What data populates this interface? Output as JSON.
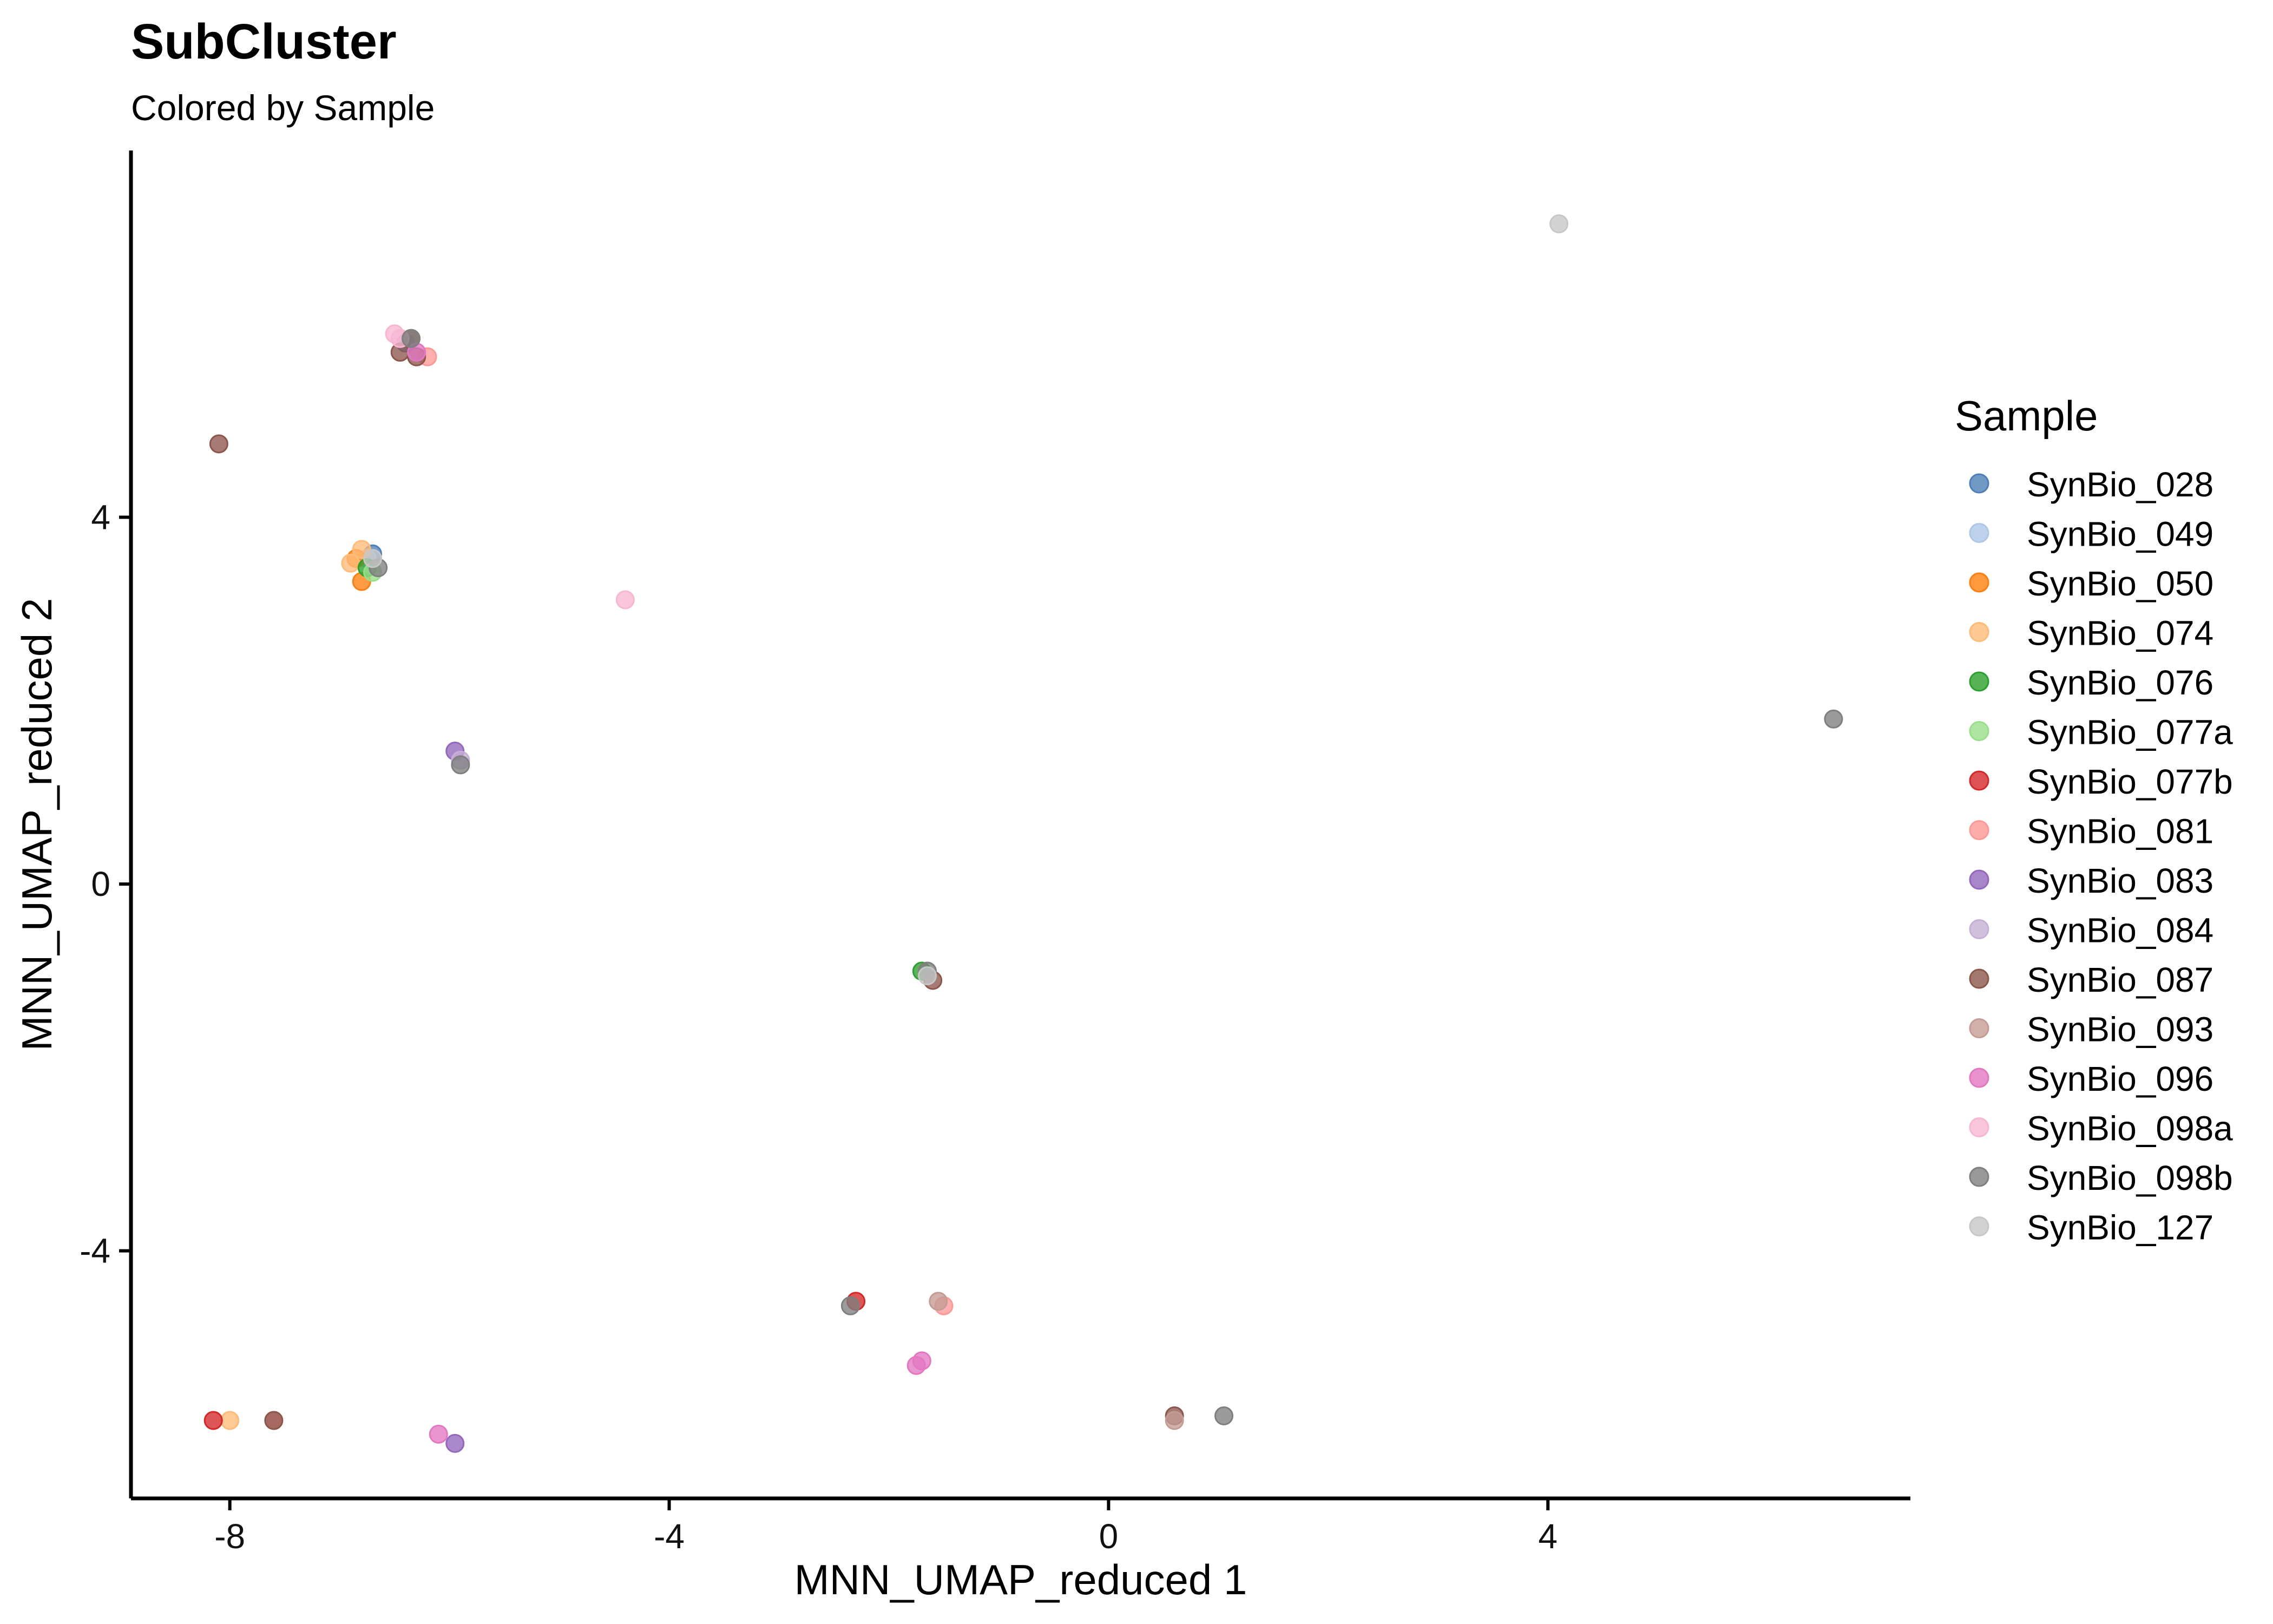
{
  "chart_data": {
    "type": "scatter",
    "title": "SubCluster",
    "subtitle": "Colored by Sample",
    "xlabel": "MNN_UMAP_reduced 1",
    "ylabel": "MNN_UMAP_reduced 2",
    "xlim": [
      -8.9,
      7.3
    ],
    "ylim": [
      -6.7,
      8.0
    ],
    "xticks": [
      -8,
      -4,
      0,
      4
    ],
    "yticks": [
      -4,
      0,
      4
    ],
    "grid": false,
    "legend_title": "Sample",
    "legend_placement": "right",
    "series": [
      {
        "name": "SynBio_028",
        "color": "#4E7FB8",
        "points": [
          [
            -6.7,
            3.6
          ],
          [
            -6.4,
            5.9
          ]
        ]
      },
      {
        "name": "SynBio_049",
        "color": "#AEC7E8",
        "points": [
          [
            -6.75,
            3.55
          ]
        ]
      },
      {
        "name": "SynBio_050",
        "color": "#FF7F0E",
        "points": [
          [
            -6.8,
            3.3
          ],
          [
            -6.85,
            3.55
          ]
        ]
      },
      {
        "name": "SynBio_074",
        "color": "#FFBB78",
        "points": [
          [
            -8.0,
            -5.85
          ],
          [
            -6.8,
            3.65
          ],
          [
            -6.9,
            3.5
          ]
        ]
      },
      {
        "name": "SynBio_076",
        "color": "#2CA02C",
        "points": [
          [
            -1.7,
            -0.95
          ],
          [
            -6.75,
            3.45
          ]
        ]
      },
      {
        "name": "SynBio_077a",
        "color": "#98DF8A",
        "points": [
          [
            -6.7,
            3.4
          ]
        ]
      },
      {
        "name": "SynBio_077b",
        "color": "#D62728",
        "points": [
          [
            -8.15,
            -5.85
          ],
          [
            -2.3,
            -4.55
          ]
        ]
      },
      {
        "name": "SynBio_081",
        "color": "#FF9896",
        "points": [
          [
            -6.2,
            5.75
          ],
          [
            -7.6,
            -5.85
          ],
          [
            -1.5,
            -4.6
          ]
        ]
      },
      {
        "name": "SynBio_083",
        "color": "#9467BD",
        "points": [
          [
            -5.95,
            1.45
          ],
          [
            -5.95,
            -6.1
          ]
        ]
      },
      {
        "name": "SynBio_084",
        "color": "#C5B0D5",
        "points": [
          [
            -5.9,
            1.35
          ]
        ]
      },
      {
        "name": "SynBio_087",
        "color": "#8C564B",
        "points": [
          [
            -8.1,
            4.8
          ],
          [
            -6.35,
            5.95
          ],
          [
            -6.45,
            5.8
          ],
          [
            -6.3,
            5.75
          ],
          [
            -1.6,
            -1.05
          ],
          [
            0.6,
            -5.8
          ],
          [
            -7.6,
            -5.85
          ]
        ]
      },
      {
        "name": "SynBio_093",
        "color": "#C49C94",
        "points": [
          [
            -1.55,
            -4.55
          ],
          [
            0.6,
            -5.85
          ]
        ]
      },
      {
        "name": "SynBio_096",
        "color": "#E377C2",
        "points": [
          [
            -1.75,
            -5.25
          ],
          [
            -1.7,
            -5.2
          ],
          [
            -6.1,
            -6.0
          ],
          [
            -6.3,
            5.8
          ]
        ]
      },
      {
        "name": "SynBio_098a",
        "color": "#F7B6D2",
        "points": [
          [
            -4.4,
            3.1
          ],
          [
            -6.5,
            6.0
          ],
          [
            -6.45,
            5.95
          ]
        ]
      },
      {
        "name": "SynBio_098b",
        "color": "#7F7F7F",
        "points": [
          [
            6.6,
            1.8
          ],
          [
            -6.65,
            3.45
          ],
          [
            -5.9,
            1.3
          ],
          [
            -1.65,
            -0.95
          ],
          [
            -2.35,
            -4.6
          ],
          [
            1.05,
            -5.8
          ],
          [
            -6.35,
            5.95
          ]
        ]
      },
      {
        "name": "SynBio_127",
        "color": "#C7C7C7",
        "points": [
          [
            4.1,
            7.2
          ],
          [
            -1.65,
            -1.0
          ],
          [
            -6.7,
            3.55
          ]
        ]
      }
    ]
  }
}
